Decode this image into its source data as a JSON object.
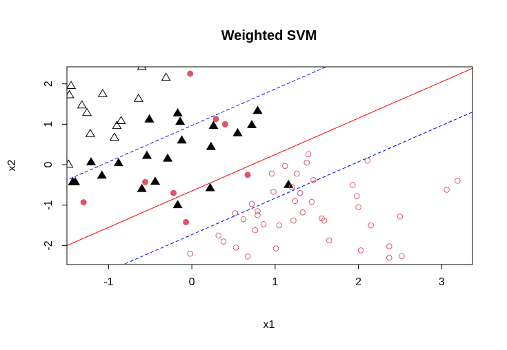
{
  "chart_data": {
    "type": "scatter",
    "title": "Weighted SVM",
    "xlabel": "x1",
    "ylabel": "x2",
    "xlim": [
      -1.5,
      3.37
    ],
    "ylim": [
      -2.47,
      2.42
    ],
    "xticks": [
      -1,
      0,
      1,
      2,
      3
    ],
    "yticks": [
      -2,
      -1,
      0,
      1,
      2
    ],
    "grid": false,
    "legend": "none",
    "colors": {
      "axis": "#000000",
      "class_a": "#000000",
      "class_b": "#DF536B",
      "boundary": "#FF0000",
      "margin": "#0000FF"
    },
    "lines": [
      {
        "name": "boundary",
        "style": "solid",
        "slope": 0.9,
        "intercept": -0.65
      },
      {
        "name": "margin-upper",
        "style": "dashed",
        "slope": 0.9,
        "intercept": 0.97
      },
      {
        "name": "margin-lower",
        "style": "dashed",
        "slope": 0.9,
        "intercept": -1.73
      }
    ],
    "series": [
      {
        "marker": "triangle-open",
        "color": "#000000",
        "points": [
          [
            -1.45,
            1.95
          ],
          [
            -1.47,
            1.72
          ],
          [
            -1.32,
            1.47
          ],
          [
            -1.26,
            1.28
          ],
          [
            -1.22,
            0.76
          ],
          [
            -1.07,
            1.75
          ],
          [
            -0.9,
            0.96
          ],
          [
            -0.85,
            1.08
          ],
          [
            -0.93,
            0.67
          ],
          [
            -0.64,
            1.63
          ],
          [
            -0.6,
            2.42
          ],
          [
            -0.31,
            2.15
          ],
          [
            -1.48,
            0.0
          ]
        ]
      },
      {
        "marker": "triangle-filled",
        "color": "#000000",
        "points": [
          [
            -1.4,
            -0.43
          ],
          [
            -1.43,
            -0.43
          ],
          [
            -1.21,
            0.06
          ],
          [
            -1.08,
            -0.27
          ],
          [
            -0.88,
            0.04
          ],
          [
            -0.6,
            -0.6
          ],
          [
            -0.54,
            0.22
          ],
          [
            -0.51,
            1.12
          ],
          [
            -0.44,
            -0.42
          ],
          [
            -0.29,
            0.15
          ],
          [
            -0.17,
            1.27
          ],
          [
            -0.14,
            1.06
          ],
          [
            -0.12,
            0.6
          ],
          [
            -0.17,
            -1.0
          ],
          [
            0.22,
            -0.58
          ],
          [
            0.23,
            0.44
          ],
          [
            0.26,
            0.96
          ],
          [
            0.55,
            0.78
          ],
          [
            0.72,
            0.98
          ],
          [
            0.79,
            1.33
          ],
          [
            1.16,
            -0.5
          ]
        ]
      },
      {
        "marker": "circle-filled",
        "color": "#DF536B",
        "points": [
          [
            -1.3,
            -0.93
          ],
          [
            -0.56,
            -0.43
          ],
          [
            -0.22,
            -0.7
          ],
          [
            -0.07,
            -1.42
          ],
          [
            -0.02,
            2.25
          ],
          [
            0.29,
            1.13
          ],
          [
            0.4,
            1.0
          ],
          [
            0.67,
            -0.25
          ]
        ]
      },
      {
        "marker": "circle-open",
        "color": "#DF536B",
        "points": [
          [
            -0.02,
            -2.2
          ],
          [
            0.32,
            -1.75
          ],
          [
            0.38,
            -1.9
          ],
          [
            0.52,
            -1.2
          ],
          [
            0.53,
            -2.05
          ],
          [
            0.62,
            -1.35
          ],
          [
            0.67,
            -2.27
          ],
          [
            0.72,
            -0.97
          ],
          [
            0.76,
            -1.62
          ],
          [
            0.79,
            -1.25
          ],
          [
            0.79,
            -1.15
          ],
          [
            0.86,
            -1.47
          ],
          [
            0.96,
            -0.22
          ],
          [
            0.98,
            -0.67
          ],
          [
            1.01,
            -2.07
          ],
          [
            1.05,
            -1.5
          ],
          [
            1.12,
            -0.03
          ],
          [
            1.2,
            -0.55
          ],
          [
            1.22,
            -1.38
          ],
          [
            1.24,
            -0.9
          ],
          [
            1.26,
            -0.22
          ],
          [
            1.3,
            -0.7
          ],
          [
            1.33,
            -1.18
          ],
          [
            1.38,
            0.05
          ],
          [
            1.4,
            0.26
          ],
          [
            1.44,
            -0.92
          ],
          [
            1.46,
            -0.38
          ],
          [
            1.56,
            -1.33
          ],
          [
            1.59,
            -1.38
          ],
          [
            1.65,
            -1.87
          ],
          [
            1.93,
            -0.5
          ],
          [
            1.98,
            -0.78
          ],
          [
            2.0,
            -1.05
          ],
          [
            2.03,
            -2.12
          ],
          [
            2.11,
            0.1
          ],
          [
            2.15,
            -1.5
          ],
          [
            2.37,
            -2.02
          ],
          [
            2.37,
            -2.3
          ],
          [
            2.5,
            -1.28
          ],
          [
            2.52,
            -2.26
          ],
          [
            3.06,
            -0.62
          ],
          [
            3.19,
            -0.4
          ]
        ]
      }
    ]
  }
}
